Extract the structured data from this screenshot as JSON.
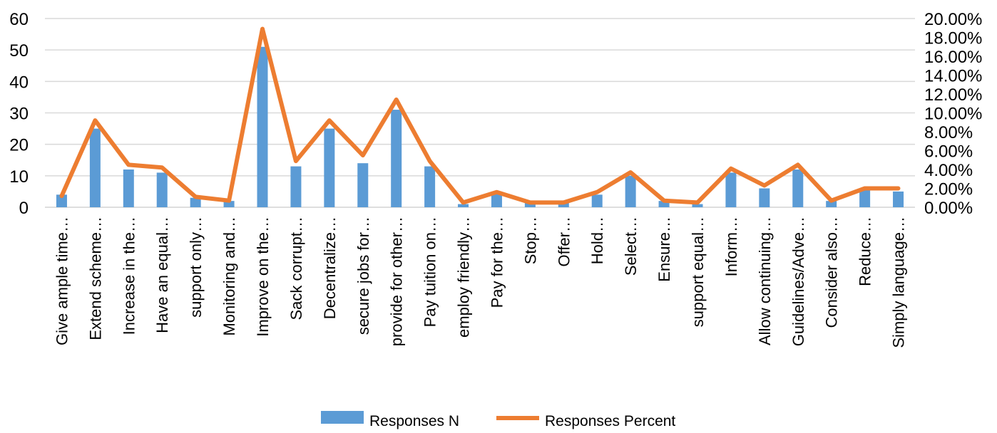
{
  "colors": {
    "bar": "#5b9bd5",
    "line": "#ed7d31",
    "grid": "#d9d9d9",
    "text": "#000000"
  },
  "chart_data": {
    "type": "bar",
    "title": "",
    "xlabel": "",
    "ylabel": "",
    "categories": [
      "Give ample time…",
      "Extend scheme…",
      "Increase in the…",
      "Have an equal…",
      "support only…",
      "Monitoring and…",
      "Improve on the…",
      "Sack corrupt…",
      "Decentralize…",
      "secure jobs for…",
      "provide for other…",
      "Pay tuition on…",
      "employ friendly…",
      "Pay for the…",
      "Stop…",
      "Offer…",
      "Hold…",
      "Select…",
      "Ensure…",
      "support equal…",
      "Inform…",
      "Allow continuing…",
      "Guidelines/Adve…",
      "Consider also…",
      "Reduce…",
      "Simply language…"
    ],
    "series": [
      {
        "name": "Responses N",
        "type": "bar",
        "axis": "left",
        "values": [
          4,
          25,
          12,
          11,
          3,
          2,
          51,
          13,
          25,
          14,
          31,
          13,
          1,
          5,
          2,
          2,
          4,
          10,
          2,
          1,
          11,
          6,
          12,
          2,
          6,
          5
        ]
      },
      {
        "name": "Responses Percent",
        "type": "line",
        "axis": "right",
        "values": [
          1.2,
          9.2,
          4.5,
          4.2,
          1.1,
          0.7,
          18.9,
          4.9,
          9.2,
          5.5,
          11.4,
          4.9,
          0.5,
          1.6,
          0.5,
          0.5,
          1.6,
          3.7,
          0.7,
          0.5,
          4.1,
          2.3,
          4.5,
          0.7,
          2.0,
          2.0
        ]
      }
    ],
    "y_left": {
      "ylim": [
        0,
        60
      ],
      "ticks": [
        "0",
        "10",
        "20",
        "30",
        "40",
        "50",
        "60"
      ]
    },
    "y_right": {
      "ylim": [
        0,
        20
      ],
      "ticks": [
        "0.00%",
        "2.00%",
        "4.00%",
        "6.00%",
        "8.00%",
        "10.00%",
        "12.00%",
        "14.00%",
        "16.00%",
        "18.00%",
        "20.00%"
      ]
    },
    "grid": true,
    "legend": {
      "position": "bottom",
      "items": [
        "Responses N",
        "Responses Percent"
      ]
    }
  }
}
